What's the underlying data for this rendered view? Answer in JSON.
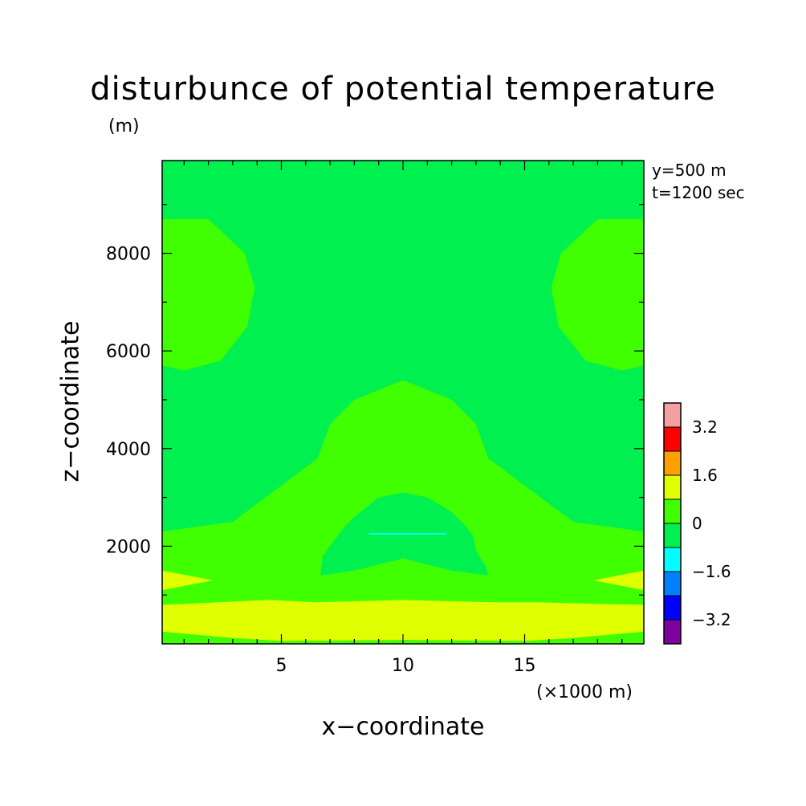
{
  "chart_data": {
    "type": "heatmap",
    "title": "disturbunce of potential temperature",
    "xlabel": "x−coordinate",
    "ylabel": "z−coordinate",
    "x_unit_label": "(×1000 m)",
    "y_unit_label": "(m)",
    "annotations": [
      "y=500 m",
      "t=1200 sec"
    ],
    "xlim": [
      0.1,
      19.9
    ],
    "ylim": [
      0,
      9900
    ],
    "xticks": [
      5,
      10,
      15
    ],
    "yticks": [
      2000,
      4000,
      6000,
      8000
    ],
    "colorbar": {
      "levels": [
        -4.0,
        -3.2,
        -2.4,
        -1.6,
        -0.8,
        0,
        0.8,
        1.6,
        2.4,
        3.2,
        4.0
      ],
      "colors": [
        "#7f00a0",
        "#0000ff",
        "#0080ff",
        "#00ffff",
        "#00f050",
        "#40ff00",
        "#e0ff00",
        "#ffa000",
        "#ff0000",
        "#f5a0a0"
      ],
      "tick_labels": [
        "−3.2",
        "−1.6",
        "0",
        "1.6",
        "3.2"
      ],
      "tick_values": [
        -3.2,
        -1.6,
        0,
        1.6,
        3.2
      ]
    },
    "regions": [
      {
        "level": "0 to 0.8",
        "color": "#40ff00",
        "x": [
          0.1,
          0.1,
          3.0,
          6.5,
          7.0,
          8.0,
          10.0,
          12.0,
          13.0,
          13.5,
          17.0,
          19.9,
          19.9,
          15.5,
          13.7,
          10.0,
          6.4,
          4.5,
          0.1
        ],
        "y": [
          800,
          2300,
          2500,
          3800,
          4500,
          5000,
          5400,
          5000,
          4500,
          3800,
          2500,
          2300,
          800,
          850,
          850,
          900,
          850,
          900,
          800
        ]
      },
      {
        "level": "0 to 0.8",
        "color": "#40ff00",
        "x": [
          0.1,
          1.0,
          2.5,
          3.6,
          3.9,
          3.5,
          2.0,
          0.1
        ],
        "y": [
          5700,
          5600,
          5800,
          6500,
          7300,
          8000,
          8700,
          8700
        ]
      },
      {
        "level": "0 to 0.8",
        "color": "#40ff00",
        "x": [
          19.9,
          19.0,
          17.5,
          16.4,
          16.1,
          16.5,
          18.0,
          19.9
        ],
        "y": [
          5700,
          5600,
          5800,
          6500,
          7300,
          8000,
          8700,
          8700
        ]
      },
      {
        "level": "0.8 to 1.6",
        "color": "#e0ff00",
        "x": [
          0.1,
          4.5,
          6.4,
          10.0,
          13.7,
          15.5,
          19.9,
          19.9,
          15.0,
          10.0,
          5.0,
          0.1
        ],
        "y": [
          800,
          900,
          850,
          900,
          850,
          850,
          800,
          100,
          0,
          0,
          0,
          100
        ]
      },
      {
        "level": "0.8 to 1.6",
        "color": "#e0ff00",
        "x": [
          0.1,
          2.2,
          0.1
        ],
        "y": [
          1100,
          1300,
          1500
        ]
      },
      {
        "level": "0.8 to 1.6",
        "color": "#e0ff00",
        "x": [
          19.9,
          17.8,
          19.9
        ],
        "y": [
          1100,
          1300,
          1500
        ]
      },
      {
        "level": "0 to 0.8",
        "color": "#40ff00",
        "x": [
          0.1,
          3.0,
          5.0,
          10.0,
          15.0,
          17.0,
          19.9,
          19.9,
          0.1
        ],
        "y": [
          250,
          120,
          60,
          80,
          60,
          120,
          250,
          0,
          0
        ]
      },
      {
        "level": "-0.8 to 0",
        "color": "#00f050",
        "x": [
          6.6,
          6.7,
          7.3,
          7.6,
          8.0,
          9.0,
          10.0,
          11.0,
          12.0,
          12.6,
          12.9,
          13.0,
          13.4,
          13.5,
          12.0,
          10.0,
          8.0
        ],
        "y": [
          1400,
          1800,
          2200,
          2400,
          2600,
          3000,
          3100,
          3000,
          2700,
          2400,
          2200,
          1900,
          1600,
          1400,
          1500,
          1750,
          1500
        ]
      },
      {
        "level": "-1.6 to -0.8",
        "color": "#00ffff",
        "x": [
          8.6,
          11.8,
          11.8,
          8.6
        ],
        "y": [
          2240,
          2240,
          2270,
          2270
        ]
      }
    ]
  }
}
